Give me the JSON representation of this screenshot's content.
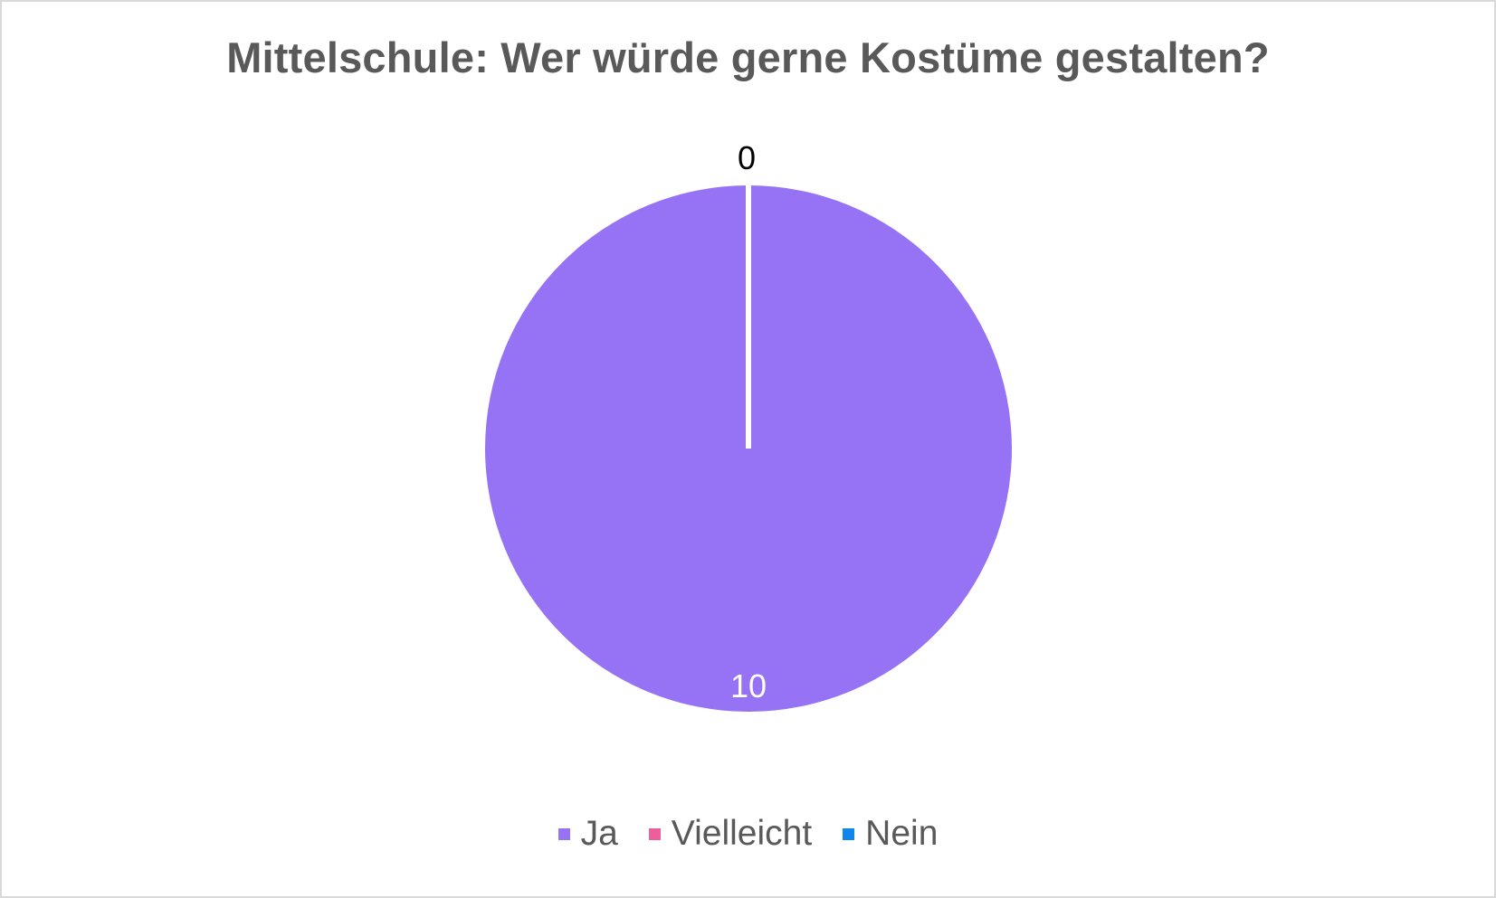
{
  "chart_data": {
    "type": "pie",
    "title": "Mittelschule: Wer würde gerne Kostüme gestalten?",
    "categories": [
      "Ja",
      "Vielleicht",
      "Nein"
    ],
    "values": [
      10,
      0,
      0
    ],
    "colors": [
      "#9672f4",
      "#ee5e9c",
      "#0e86ee"
    ],
    "data_labels": [
      "10",
      "0",
      "0"
    ],
    "legend_position": "bottom"
  }
}
